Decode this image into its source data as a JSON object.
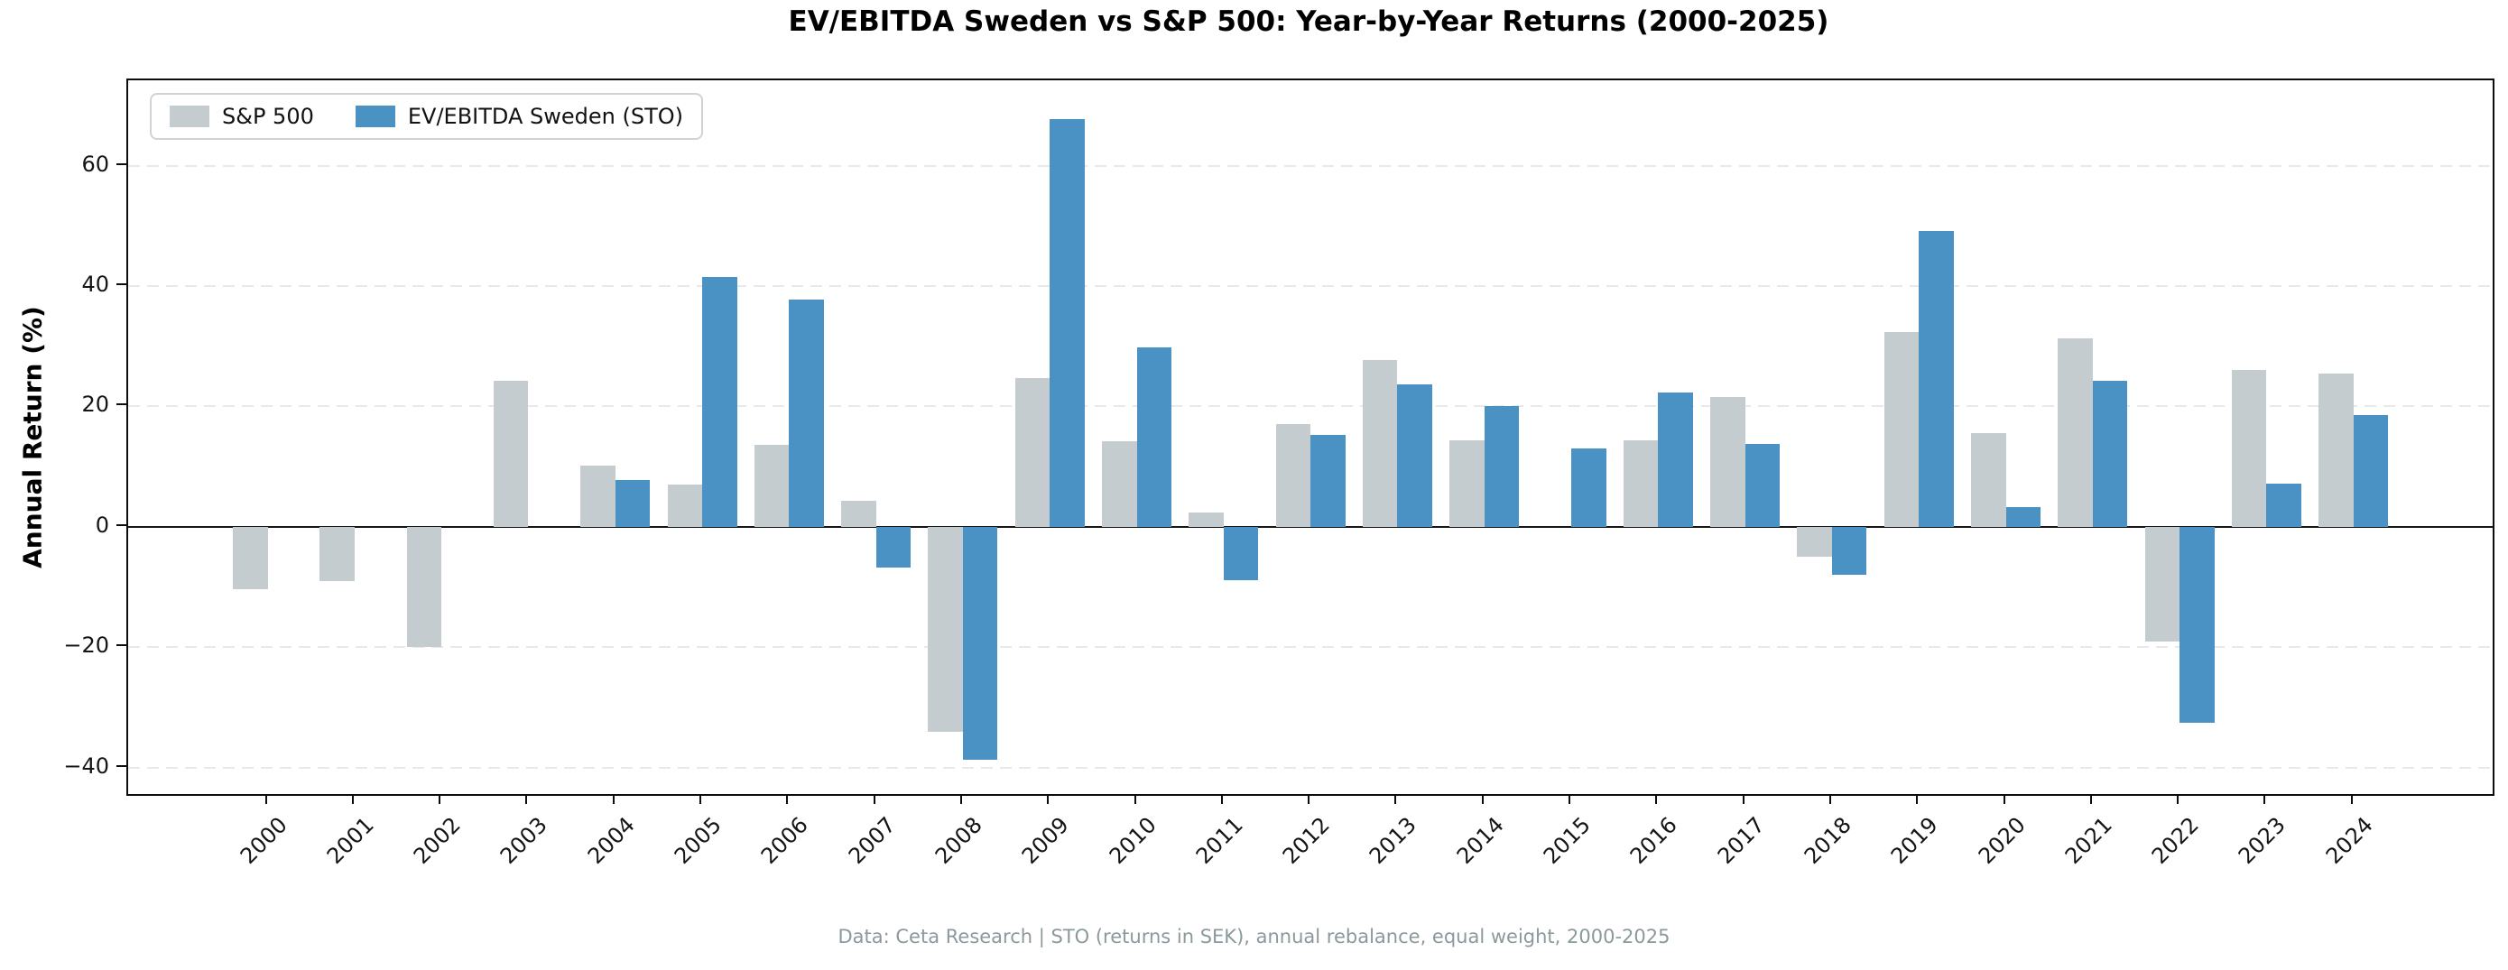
{
  "chart_data": {
    "type": "bar",
    "title": "EV/EBITDA Sweden vs S&P 500: Year-by-Year Returns (2000-2025)",
    "xlabel": "",
    "ylabel": "Annual Return (%)",
    "categories": [
      "2000",
      "2001",
      "2002",
      "2003",
      "2004",
      "2005",
      "2006",
      "2007",
      "2008",
      "2009",
      "2010",
      "2011",
      "2012",
      "2013",
      "2014",
      "2015",
      "2016",
      "2017",
      "2018",
      "2019",
      "2020",
      "2021",
      "2022",
      "2023",
      "2024"
    ],
    "series": [
      {
        "name": "S&P 500",
        "color": "#c4cccf",
        "values": [
          -10.4,
          -9.0,
          -20.0,
          24.2,
          10.2,
          7.1,
          13.7,
          4.4,
          -34.1,
          24.7,
          14.3,
          2.4,
          17.0,
          27.7,
          14.4,
          null,
          14.4,
          21.6,
          -5.0,
          32.3,
          15.5,
          31.3,
          -19.0,
          26.0,
          25.4
        ]
      },
      {
        "name": "EV/EBITDA Sweden (STO)",
        "color": "#4a91c4",
        "values": [
          null,
          null,
          null,
          null,
          7.8,
          41.5,
          37.8,
          -6.7,
          -38.7,
          67.8,
          29.8,
          -8.8,
          15.2,
          23.7,
          20.1,
          13.1,
          22.3,
          13.8,
          -7.9,
          49.2,
          3.3,
          24.2,
          -32.6,
          7.2,
          18.5
        ]
      }
    ],
    "y_ticks": [
      60,
      40,
      20,
      0,
      -20,
      -40
    ],
    "ylim": [
      -44.4,
      74.2
    ],
    "grid": "horizontal-dashed",
    "legend_position": "upper-left",
    "grid_color": "#e9e9e9",
    "zero_line_color": "#161616"
  },
  "footer": {
    "text": "Data: Ceta Research | STO (returns in SEK), annual rebalance, equal weight, 2000-2025"
  }
}
